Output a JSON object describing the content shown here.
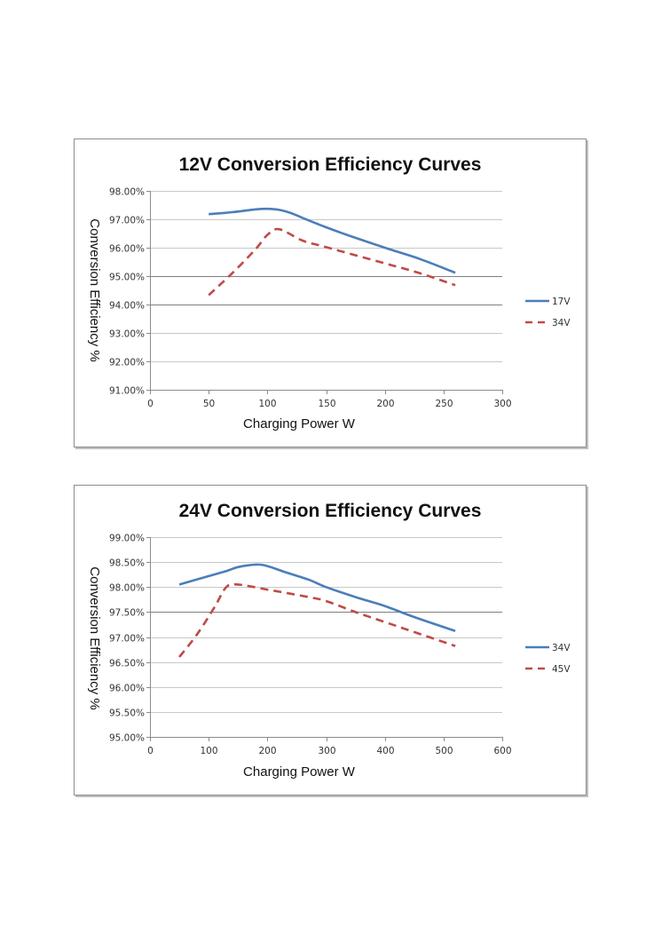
{
  "chart_data": [
    {
      "type": "line",
      "title": "12V Conversion Efficiency Curves",
      "xlabel": "Charging Power W",
      "ylabel": "Conversion Efficiency %",
      "xlim": [
        0,
        300
      ],
      "ylim": [
        91,
        98
      ],
      "x_ticks": [
        0,
        50,
        100,
        150,
        200,
        250,
        300
      ],
      "x_tick_labels": [
        "0",
        "50",
        "100",
        "150",
        "200",
        "250",
        "300"
      ],
      "y_ticks": [
        91,
        92,
        93,
        94,
        95,
        96,
        97,
        98
      ],
      "y_tick_labels": [
        "91.00%",
        "92.00%",
        "93.00%",
        "94.00%",
        "95.00%",
        "96.00%",
        "97.00%",
        "98.00%"
      ],
      "grid": true,
      "legend_position": "right",
      "series": [
        {
          "name": "17V",
          "style": "solid",
          "color": "#4a7ebb",
          "x": [
            50,
            70,
            90,
            100,
            110,
            120,
            130,
            150,
            170,
            200,
            230,
            260
          ],
          "values": [
            97.18,
            97.25,
            97.35,
            97.37,
            97.33,
            97.22,
            97.05,
            96.72,
            96.42,
            96.0,
            95.6,
            95.12
          ]
        },
        {
          "name": "34V",
          "style": "dashed",
          "color": "#be4b48",
          "x": [
            50,
            70,
            90,
            100,
            110,
            130,
            150,
            200,
            230,
            260
          ],
          "values": [
            94.33,
            95.1,
            95.95,
            96.45,
            96.65,
            96.25,
            96.02,
            95.45,
            95.1,
            94.68
          ]
        }
      ]
    },
    {
      "type": "line",
      "title": "24V Conversion Efficiency Curves",
      "xlabel": "Charging Power W",
      "ylabel": "Conversion Efficiency %",
      "xlim": [
        0,
        600
      ],
      "ylim": [
        95,
        99
      ],
      "x_ticks": [
        0,
        100,
        200,
        300,
        400,
        500,
        600
      ],
      "x_tick_labels": [
        "0",
        "100",
        "200",
        "300",
        "400",
        "500",
        "600"
      ],
      "y_ticks": [
        95,
        95.5,
        96,
        96.5,
        97,
        97.5,
        98,
        98.5,
        99
      ],
      "y_tick_labels": [
        "95.00%",
        "95.50%",
        "96.00%",
        "96.50%",
        "97.00%",
        "97.50%",
        "98.00%",
        "98.50%",
        "99.00%"
      ],
      "grid": true,
      "legend_position": "right",
      "series": [
        {
          "name": "34V",
          "style": "solid",
          "color": "#4a7ebb",
          "x": [
            50,
            100,
            130,
            150,
            180,
            200,
            230,
            270,
            300,
            350,
            400,
            450,
            520
          ],
          "values": [
            98.05,
            98.22,
            98.32,
            98.4,
            98.45,
            98.42,
            98.3,
            98.15,
            98.0,
            97.8,
            97.62,
            97.4,
            97.12
          ]
        },
        {
          "name": "45V",
          "style": "dashed",
          "color": "#be4b48",
          "x": [
            50,
            80,
            110,
            130,
            150,
            200,
            270,
            300,
            350,
            400,
            450,
            520
          ],
          "values": [
            96.6,
            97.05,
            97.6,
            98.0,
            98.05,
            97.95,
            97.8,
            97.72,
            97.5,
            97.3,
            97.1,
            96.82
          ]
        }
      ]
    }
  ]
}
